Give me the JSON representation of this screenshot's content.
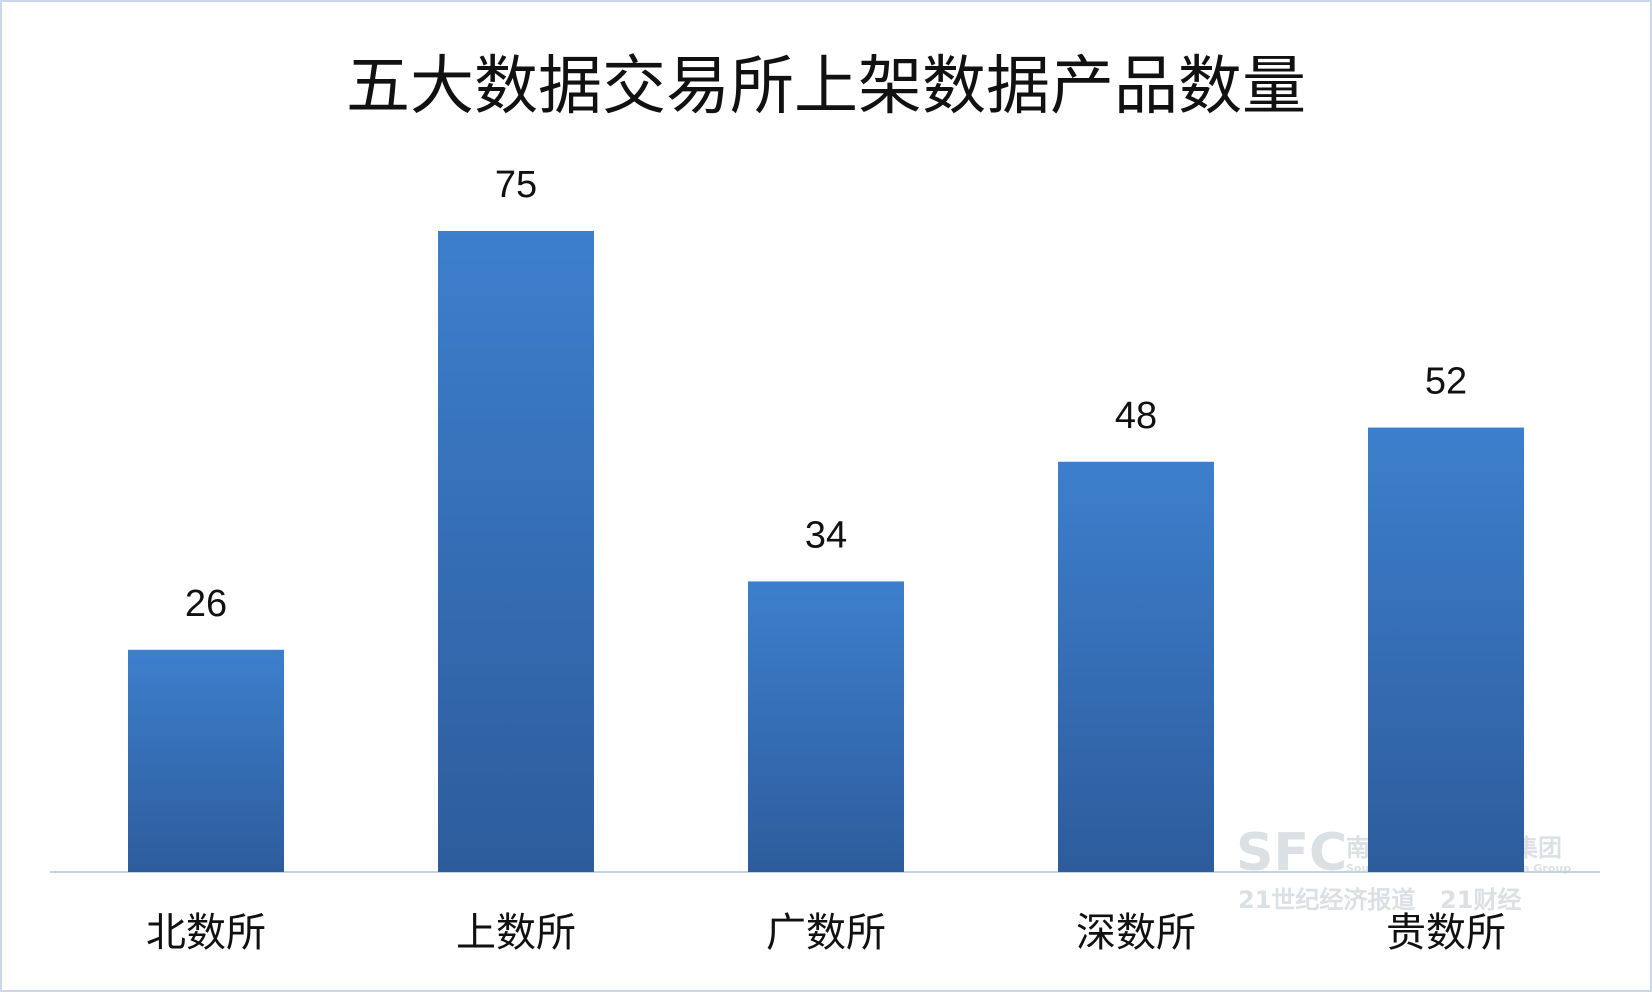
{
  "chart_data": {
    "type": "bar",
    "title": "五大数据交易所上架数据产品数量",
    "categories": [
      "北数所",
      "上数所",
      "广数所",
      "深数所",
      "贵数所"
    ],
    "values": [
      26,
      75,
      34,
      48,
      52
    ],
    "color": "#3a79c6"
  },
  "watermark": {
    "logo": "SFC",
    "group": "南方财经全媒体集团",
    "group_en": "Southern Finance Omnimedia Group",
    "paper": "21世纪经济报道",
    "app": "21财经"
  }
}
